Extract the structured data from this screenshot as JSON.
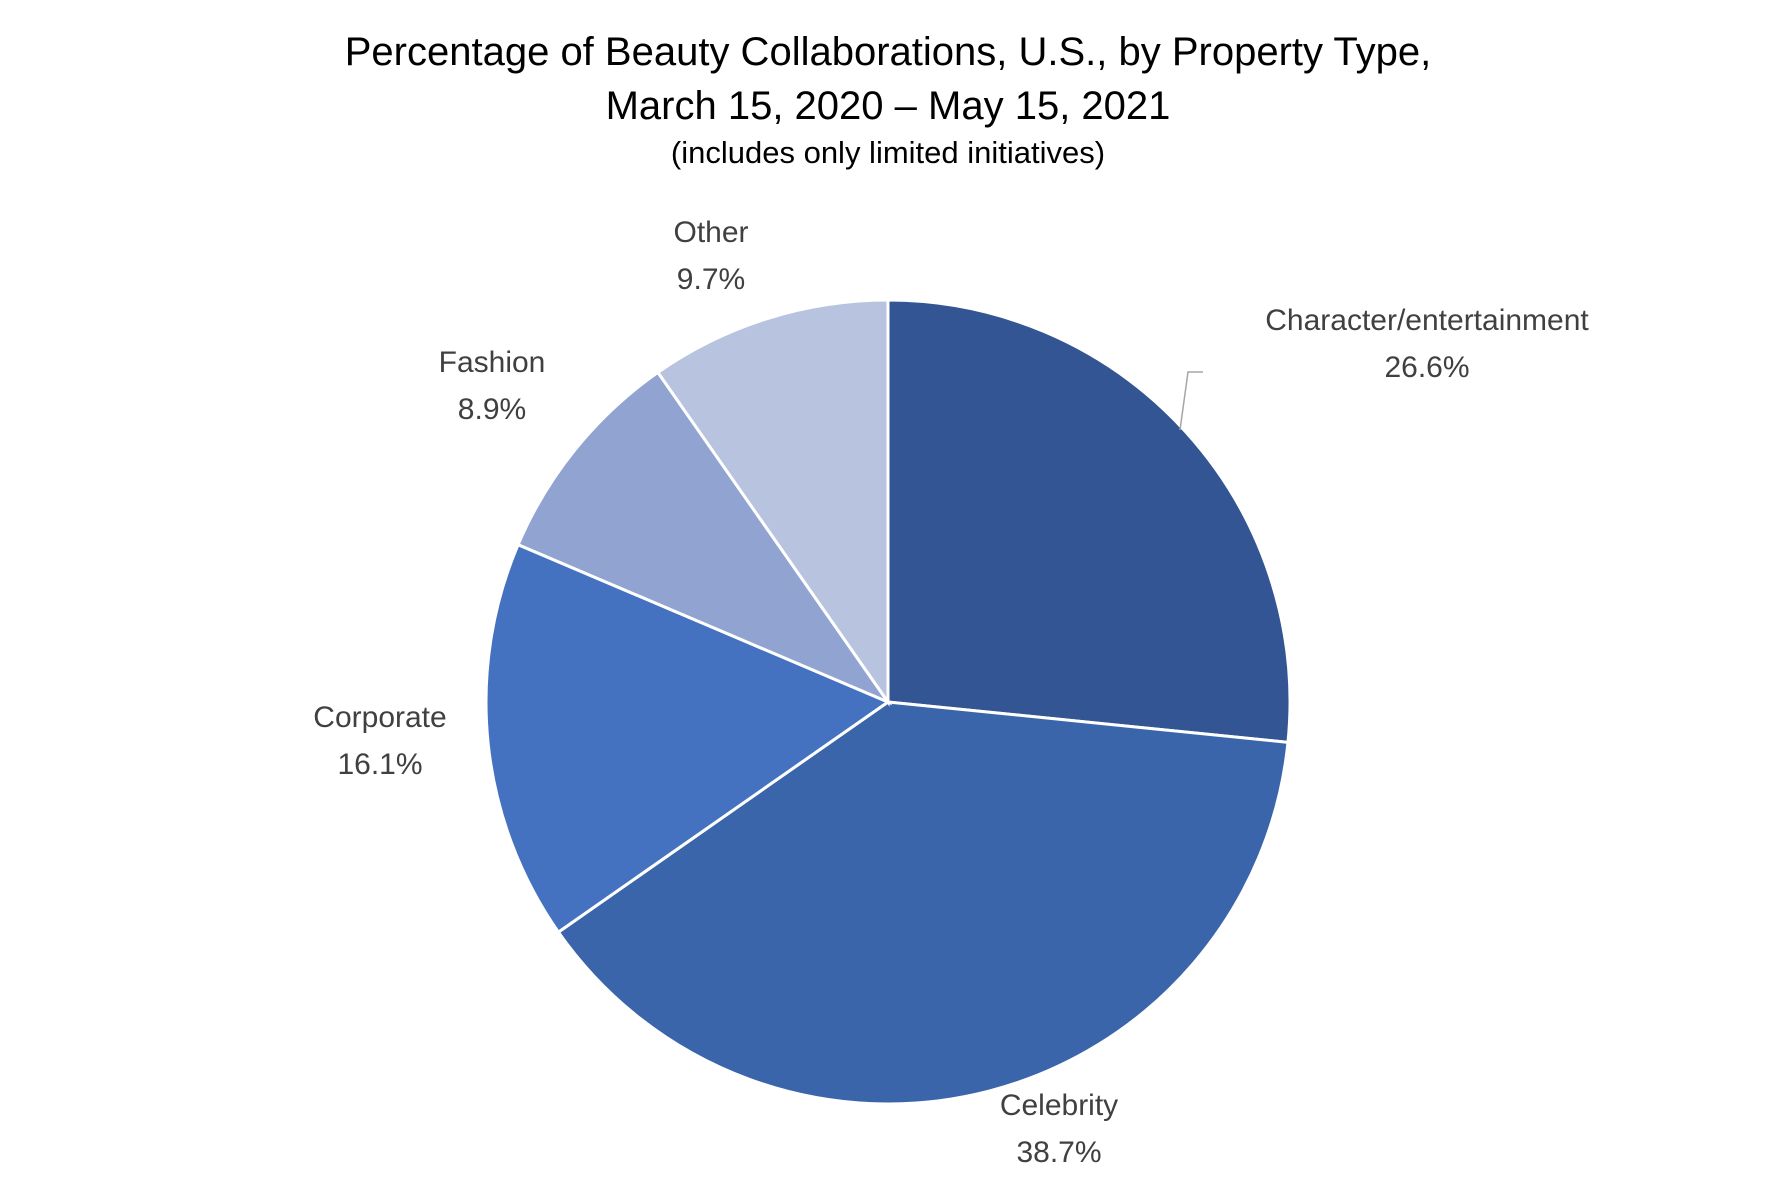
{
  "chart_data": {
    "type": "pie",
    "title_line1": "Percentage of Beauty Collaborations, U.S., by Property Type,",
    "title_line2": "March 15, 2020 – May 15, 2021",
    "subtitle": "(includes only limited initiatives)",
    "slices": [
      {
        "label": "Character/entertainment",
        "value": 26.6,
        "value_label": "26.6%",
        "color": "#335593"
      },
      {
        "label": "Celebrity",
        "value": 38.7,
        "value_label": "38.7%",
        "color": "#3b65aa"
      },
      {
        "label": "Corporate",
        "value": 16.1,
        "value_label": "16.1%",
        "color": "#4472c0"
      },
      {
        "label": "Fashion",
        "value": 8.9,
        "value_label": "8.9%",
        "color": "#91a4d1"
      },
      {
        "label": "Other",
        "value": 9.7,
        "value_label": "9.7%",
        "color": "#b8c3e0"
      }
    ],
    "start_angle": "12 o'clock",
    "direction": "clockwise",
    "legend": "none",
    "data_labels": "outside"
  }
}
